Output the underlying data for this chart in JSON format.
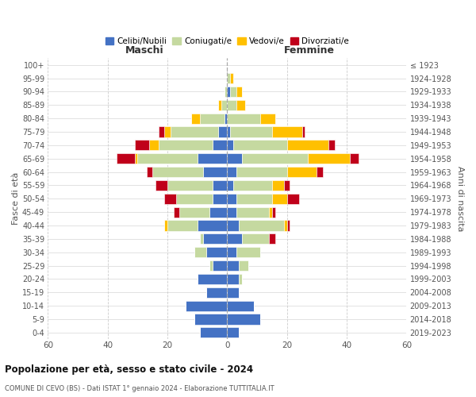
{
  "age_groups_bottom_to_top": [
    "0-4",
    "5-9",
    "10-14",
    "15-19",
    "20-24",
    "25-29",
    "30-34",
    "35-39",
    "40-44",
    "45-49",
    "50-54",
    "55-59",
    "60-64",
    "65-69",
    "70-74",
    "75-79",
    "80-84",
    "85-89",
    "90-94",
    "95-99",
    "100+"
  ],
  "birth_years_bottom_to_top": [
    "2019-2023",
    "2014-2018",
    "2009-2013",
    "2004-2008",
    "1999-2003",
    "1994-1998",
    "1989-1993",
    "1984-1988",
    "1979-1983",
    "1974-1978",
    "1969-1973",
    "1964-1968",
    "1959-1963",
    "1954-1958",
    "1949-1953",
    "1944-1948",
    "1939-1943",
    "1934-1938",
    "1929-1933",
    "1924-1928",
    "≤ 1923"
  ],
  "maschi": {
    "celibi": [
      9,
      11,
      14,
      7,
      10,
      5,
      7,
      8,
      10,
      6,
      5,
      5,
      8,
      10,
      5,
      3,
      1,
      0,
      0,
      0,
      0
    ],
    "coniugati": [
      0,
      0,
      0,
      0,
      0,
      1,
      4,
      1,
      10,
      10,
      12,
      15,
      17,
      20,
      18,
      16,
      8,
      2,
      1,
      0,
      0
    ],
    "vedovi": [
      0,
      0,
      0,
      0,
      0,
      0,
      0,
      0,
      1,
      0,
      0,
      0,
      0,
      1,
      3,
      2,
      3,
      1,
      0,
      0,
      0
    ],
    "divorziati": [
      0,
      0,
      0,
      0,
      0,
      0,
      0,
      0,
      0,
      2,
      4,
      4,
      2,
      6,
      5,
      2,
      0,
      0,
      0,
      0,
      0
    ]
  },
  "femmine": {
    "nubili": [
      4,
      11,
      9,
      4,
      4,
      4,
      3,
      5,
      4,
      3,
      3,
      2,
      3,
      5,
      2,
      1,
      0,
      0,
      1,
      0,
      0
    ],
    "coniugate": [
      0,
      0,
      0,
      0,
      1,
      3,
      8,
      9,
      15,
      11,
      12,
      13,
      17,
      22,
      18,
      14,
      11,
      3,
      2,
      1,
      0
    ],
    "vedove": [
      0,
      0,
      0,
      0,
      0,
      0,
      0,
      0,
      1,
      1,
      5,
      4,
      10,
      14,
      14,
      10,
      5,
      3,
      2,
      1,
      0
    ],
    "divorziate": [
      0,
      0,
      0,
      0,
      0,
      0,
      0,
      2,
      1,
      1,
      4,
      2,
      2,
      3,
      2,
      1,
      0,
      0,
      0,
      0,
      0
    ]
  },
  "colors": {
    "celibi": "#4472c4",
    "coniugati": "#c5d9a0",
    "vedovi": "#ffc000",
    "divorziati": "#c0001a"
  },
  "xlim": 60,
  "title": "Popolazione per età, sesso e stato civile - 2024",
  "subtitle": "COMUNE DI CEVO (BS) - Dati ISTAT 1° gennaio 2024 - Elaborazione TUTTITALIA.IT",
  "xlabel_left": "Maschi",
  "xlabel_right": "Femmine",
  "ylabel_left": "Fasce di età",
  "ylabel_right": "Anni di nascita",
  "legend_labels": [
    "Celibi/Nubili",
    "Coniugati/e",
    "Vedovi/e",
    "Divorziati/e"
  ],
  "background_color": "#ffffff",
  "plot_bg_color": "#ffffff",
  "bar_edge_color": "#ffffff",
  "grid_color": "#cccccc",
  "xticks": [
    60,
    40,
    20,
    0,
    20,
    40,
    60
  ]
}
